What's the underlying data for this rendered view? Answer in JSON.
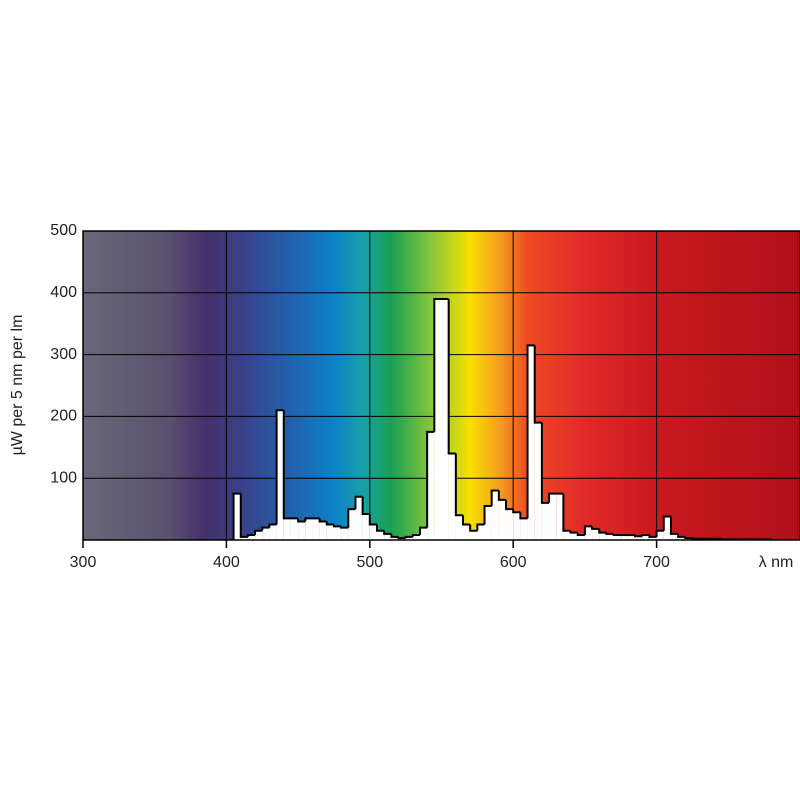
{
  "chart_data": {
    "type": "histogram",
    "ylabel": "µW per 5 nm per lm",
    "xlabel": "λ nm",
    "bins": [
      405,
      410,
      415,
      420,
      425,
      430,
      435,
      440,
      445,
      450,
      455,
      460,
      465,
      470,
      475,
      480,
      485,
      490,
      495,
      500,
      505,
      510,
      515,
      520,
      525,
      530,
      535,
      540,
      545,
      550,
      555,
      560,
      565,
      570,
      575,
      580,
      585,
      590,
      595,
      600,
      605,
      610,
      615,
      620,
      625,
      630,
      635,
      640,
      645,
      650,
      655,
      660,
      665,
      670,
      675,
      680,
      685,
      690,
      695,
      700,
      705,
      710,
      715,
      720,
      725,
      730,
      735,
      740,
      745,
      750,
      755,
      760,
      765,
      770,
      775,
      780
    ],
    "values": [
      75,
      5,
      8,
      15,
      20,
      25,
      210,
      35,
      35,
      30,
      35,
      35,
      30,
      25,
      22,
      20,
      50,
      70,
      42,
      25,
      15,
      10,
      5,
      3,
      5,
      8,
      20,
      175,
      390,
      390,
      140,
      40,
      25,
      15,
      25,
      55,
      80,
      65,
      50,
      45,
      35,
      315,
      190,
      60,
      75,
      75,
      15,
      12,
      8,
      22,
      18,
      12,
      10,
      8,
      8,
      8,
      6,
      8,
      5,
      15,
      38,
      10,
      5,
      3,
      2,
      2,
      2,
      2,
      1,
      1,
      1,
      1,
      1,
      1,
      1
    ],
    "color": "#ffffff",
    "xlim": [
      300,
      800
    ],
    "ylim": [
      0,
      500
    ],
    "xticks": [
      300,
      400,
      500,
      600,
      700
    ],
    "yticks": [
      100,
      200,
      300,
      400,
      500
    ],
    "grid": true
  }
}
